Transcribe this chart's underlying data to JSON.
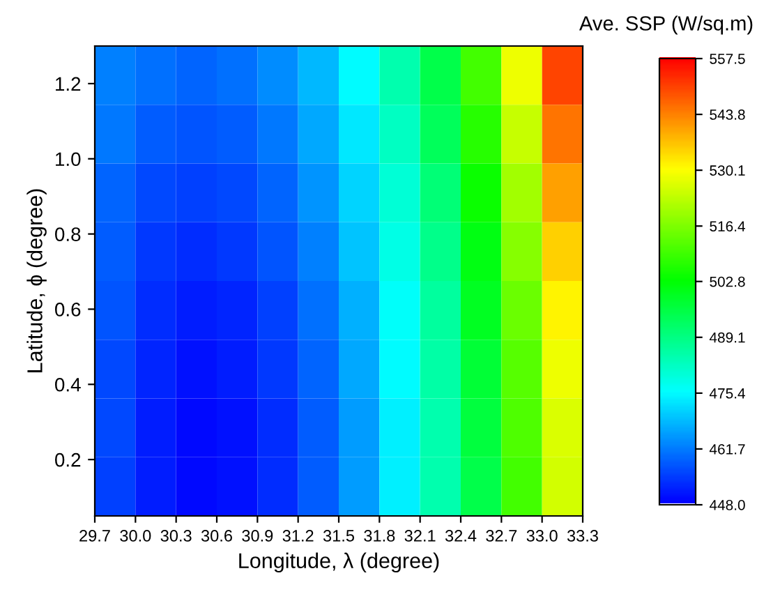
{
  "chart_data": {
    "type": "heatmap",
    "xlabel": "Longitude, λ (degree)",
    "ylabel": "Latitude, ϕ (degree)",
    "clabel": "Ave. SSP (W/sq.m)",
    "xlim": [
      29.7,
      33.3
    ],
    "xticks": [
      {
        "value": 29.7,
        "label": "29.7"
      },
      {
        "value": 30.0,
        "label": "30.0"
      },
      {
        "value": 30.3,
        "label": "30.3"
      },
      {
        "value": 30.6,
        "label": "30.6"
      },
      {
        "value": 30.9,
        "label": "30.9"
      },
      {
        "value": 31.2,
        "label": "31.2"
      },
      {
        "value": 31.5,
        "label": "31.5"
      },
      {
        "value": 31.8,
        "label": "31.8"
      },
      {
        "value": 32.1,
        "label": "32.1"
      },
      {
        "value": 32.4,
        "label": "32.4"
      },
      {
        "value": 32.7,
        "label": "32.7"
      },
      {
        "value": 33.0,
        "label": "33.0"
      },
      {
        "value": 33.3,
        "label": "33.3"
      }
    ],
    "ylim": [
      0.05,
      1.3
    ],
    "yticks": [
      0.2,
      0.4,
      0.6,
      0.8,
      {
        "value": 1.0,
        "label": "1.0"
      },
      1.2
    ],
    "clim": [
      448.0,
      557.5
    ],
    "cticks": [
      {
        "value": 448.0,
        "label": "448.0"
      },
      461.7,
      475.4,
      489.1,
      502.8,
      516.4,
      530.1,
      543.8,
      557.5
    ],
    "cells": [
      [
        462,
        460,
        459,
        460,
        463,
        468,
        475,
        484,
        495,
        510,
        528,
        550
      ],
      [
        461,
        458,
        457,
        458,
        461,
        466,
        473,
        482,
        493,
        507,
        524,
        545
      ],
      [
        459,
        456,
        455,
        456,
        459,
        464,
        471,
        480,
        490,
        504,
        520,
        540
      ],
      [
        458,
        454,
        453,
        454,
        457,
        462,
        469,
        478,
        488,
        501,
        517,
        535
      ],
      [
        457,
        453,
        451,
        452,
        455,
        460,
        467,
        476,
        486,
        499,
        514,
        531
      ],
      [
        456,
        452,
        450,
        451,
        454,
        459,
        466,
        475,
        485,
        497,
        512,
        528
      ],
      [
        456,
        451,
        449,
        450,
        453,
        458,
        465,
        474,
        484,
        496,
        511,
        526
      ],
      [
        455,
        451,
        449,
        450,
        453,
        458,
        465,
        474,
        484,
        495,
        510,
        525
      ]
    ]
  }
}
